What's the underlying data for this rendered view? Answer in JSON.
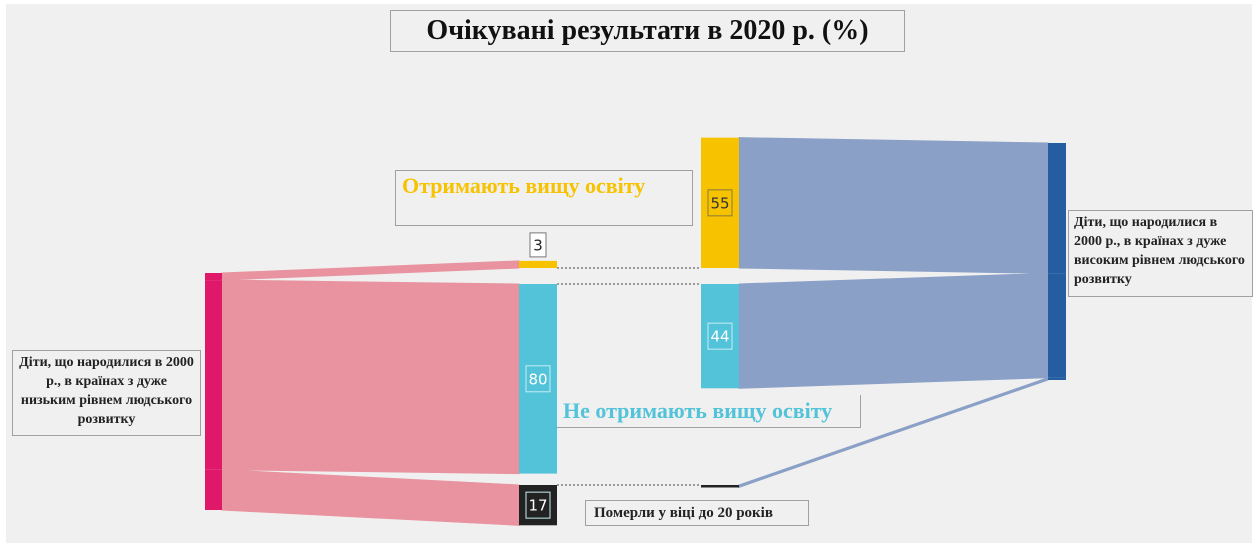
{
  "chart_data": {
    "type": "sankey",
    "title": "Очікувані результати  в 2020 р. (%)",
    "sources": [
      {
        "name": "Діти, що народилися в 2000 р., в країнах з дуже низьким рівнем людського розвитку",
        "color": "#e0186a",
        "link_color": "#e8939f",
        "values": [
          3,
          80,
          17
        ]
      },
      {
        "name": "Діти, що народилися в 2000 р., в країнах з дуже високим рівнем людського розвитку",
        "color": "#245da0",
        "link_color": "#8aa0c6",
        "values": [
          55,
          44,
          1
        ]
      }
    ],
    "outcomes": [
      {
        "name": "Отримають  вищу освіту",
        "color": "#f7c200"
      },
      {
        "name": "Не отримають вищу освіту",
        "color": "#52c3d8"
      },
      {
        "name": "Померли у віці до 20 років",
        "color": "#222222"
      }
    ]
  }
}
